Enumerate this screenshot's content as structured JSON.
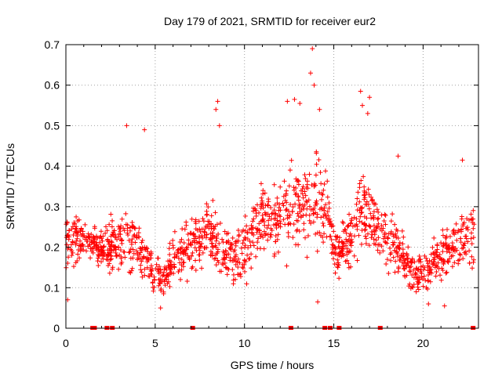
{
  "chart_data": {
    "type": "scatter",
    "title": "Day 179 of 2021, SRMTID for receiver eur2",
    "xlabel": "GPS time / hours",
    "ylabel": "SRMTID / TECUs",
    "xlim": [
      0,
      23.1
    ],
    "ylim": [
      0,
      0.7
    ],
    "xticks": [
      0,
      5,
      10,
      15,
      20
    ],
    "xtick_labels": [
      "0",
      "5",
      "10",
      "15",
      "20"
    ],
    "yticks": [
      0,
      0.1,
      0.2,
      0.3,
      0.4,
      0.5,
      0.6,
      0.7
    ],
    "ytick_labels": [
      "0",
      "0.1",
      "0.2",
      "0.3",
      "0.4",
      "0.5",
      "0.6",
      "0.7"
    ],
    "grid": true,
    "marker": "+",
    "series_color": "#ff0000",
    "profile": {
      "t": [
        0,
        1,
        2,
        3,
        3.5,
        4,
        5,
        5.5,
        6,
        7,
        8,
        9,
        9.5,
        10,
        11,
        12,
        13,
        13.8,
        14.5,
        15,
        16,
        16.5,
        17,
        18,
        19,
        19.5,
        20,
        20.5,
        21,
        22,
        22.9
      ],
      "center": [
        0.21,
        0.22,
        0.2,
        0.2,
        0.24,
        0.19,
        0.14,
        0.12,
        0.17,
        0.2,
        0.24,
        0.18,
        0.17,
        0.2,
        0.27,
        0.28,
        0.3,
        0.33,
        0.3,
        0.18,
        0.22,
        0.3,
        0.27,
        0.22,
        0.17,
        0.13,
        0.14,
        0.16,
        0.18,
        0.21,
        0.22
      ],
      "spread": [
        0.07,
        0.06,
        0.06,
        0.08,
        0.12,
        0.07,
        0.06,
        0.05,
        0.07,
        0.08,
        0.1,
        0.08,
        0.08,
        0.09,
        0.1,
        0.11,
        0.12,
        0.15,
        0.11,
        0.07,
        0.09,
        0.11,
        0.09,
        0.08,
        0.07,
        0.05,
        0.06,
        0.06,
        0.07,
        0.08,
        0.08
      ]
    },
    "outliers": [
      {
        "x": 3.4,
        "y": 0.5
      },
      {
        "x": 4.4,
        "y": 0.49
      },
      {
        "x": 8.5,
        "y": 0.56
      },
      {
        "x": 8.4,
        "y": 0.54
      },
      {
        "x": 12.4,
        "y": 0.56
      },
      {
        "x": 12.8,
        "y": 0.565
      },
      {
        "x": 13.1,
        "y": 0.555
      },
      {
        "x": 13.7,
        "y": 0.63
      },
      {
        "x": 13.8,
        "y": 0.69
      },
      {
        "x": 13.9,
        "y": 0.6
      },
      {
        "x": 14.2,
        "y": 0.54
      },
      {
        "x": 16.5,
        "y": 0.585
      },
      {
        "x": 16.6,
        "y": 0.55
      },
      {
        "x": 17.0,
        "y": 0.57
      },
      {
        "x": 16.9,
        "y": 0.53
      },
      {
        "x": 8.6,
        "y": 0.5
      },
      {
        "x": 14.1,
        "y": 0.065
      },
      {
        "x": 5.3,
        "y": 0.05
      },
      {
        "x": 0.1,
        "y": 0.07
      },
      {
        "x": 20.3,
        "y": 0.06
      },
      {
        "x": 21.2,
        "y": 0.055
      },
      {
        "x": 22.2,
        "y": 0.415
      },
      {
        "x": 18.6,
        "y": 0.425
      }
    ],
    "baseline_markers_x": [
      1.5,
      1.6,
      2.3,
      2.6,
      7.1,
      12.6,
      14.5,
      14.8,
      15.3,
      17.6,
      22.8
    ]
  }
}
